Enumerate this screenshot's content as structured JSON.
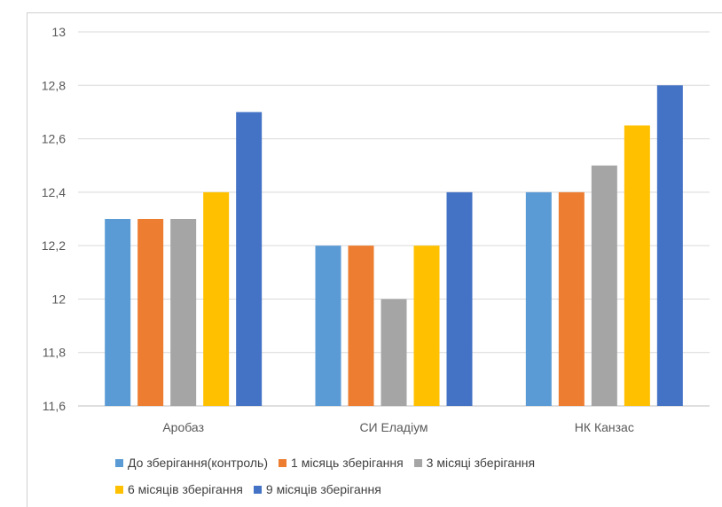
{
  "chart_data": {
    "type": "bar",
    "title": "",
    "xlabel": "",
    "ylabel": "",
    "categories": [
      "Аробаз",
      "СИ Еладіум",
      "НК Канзас"
    ],
    "ylim": [
      11.6,
      13
    ],
    "yticks": [
      "11,6",
      "11,8",
      "12",
      "12,2",
      "12,4",
      "12,6",
      "12,8",
      "13"
    ],
    "grid": true,
    "legend_position": "bottom",
    "series": [
      {
        "name": "До зберігання(контроль)",
        "color": "#5B9BD5",
        "values": [
          12.3,
          12.2,
          12.4
        ]
      },
      {
        "name": "1 місяць зберігання",
        "color": "#ED7D31",
        "values": [
          12.3,
          12.2,
          12.4
        ]
      },
      {
        "name": "3 місяці зберігання",
        "color": "#A5A5A5",
        "values": [
          12.3,
          12.0,
          12.5
        ]
      },
      {
        "name": "6 місяців зберігання",
        "color": "#FFC000",
        "values": [
          12.4,
          12.2,
          12.65
        ]
      },
      {
        "name": "9 місяців зберігання",
        "color": "#4472C4",
        "values": [
          12.7,
          12.4,
          12.8
        ]
      }
    ]
  }
}
